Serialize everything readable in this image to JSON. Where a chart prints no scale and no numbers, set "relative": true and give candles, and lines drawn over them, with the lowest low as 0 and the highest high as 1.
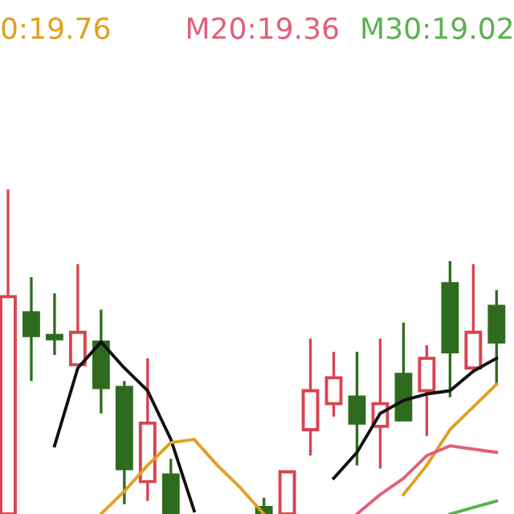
{
  "chart_data": {
    "type": "candlestick",
    "relative": true,
    "legend": "top",
    "categories": [
      null,
      null,
      null,
      null,
      null,
      null,
      null,
      null,
      null,
      null,
      null,
      null,
      null,
      null,
      null,
      null,
      null,
      null,
      null,
      null,
      null,
      null
    ],
    "ohlc": [
      [
        0,
        1.0,
        0,
        0.67
      ],
      [
        0.62,
        0.73,
        0.41,
        0.55
      ],
      [
        0.55,
        0.68,
        0.49,
        0.54
      ],
      [
        0.46,
        0.77,
        0.46,
        0.56
      ],
      [
        0.53,
        0.63,
        0.31,
        0.39
      ],
      [
        0.39,
        0.41,
        0.03,
        0.14
      ],
      [
        0.1,
        0.48,
        0.04,
        0.28
      ],
      [
        0.12,
        0.17,
        0,
        0
      ],
      null,
      null,
      null,
      [
        0.02,
        0.05,
        0,
        0
      ],
      [
        0,
        0.13,
        0,
        0.13
      ],
      [
        0.26,
        0.54,
        0.18,
        0.38
      ],
      [
        0.34,
        0.5,
        0.3,
        0.42
      ],
      [
        0.36,
        0.5,
        0.15,
        0.28
      ],
      [
        0.27,
        0.54,
        0.14,
        0.34
      ],
      [
        0.43,
        0.59,
        0.29,
        0.29
      ],
      [
        0.38,
        0.52,
        0.24,
        0.48
      ],
      [
        0.71,
        0.78,
        0.36,
        0.5
      ],
      [
        0.45,
        0.77,
        0.45,
        0.56
      ],
      [
        0.64,
        0.69,
        0.4,
        0.53
      ]
    ],
    "colors": [
      "#d9434f",
      "#2e6b1e",
      "#2e6b1e",
      "#d9434f",
      "#2e6b1e",
      "#2e6b1e",
      "#d9434f",
      "#2e6b1e",
      null,
      null,
      null,
      "#2e6b1e",
      "#d9434f",
      "#d9434f",
      "#d9434f",
      "#2e6b1e",
      "#d9434f",
      "#2e6b1e",
      "#d9434f",
      "#2e6b1e",
      "#d9434f",
      "#2e6b1e"
    ],
    "series": [
      {
        "type": "line",
        "color": "#111111",
        "values": [
          null,
          null,
          0.21,
          0.45,
          0.53,
          0.45,
          0.38,
          0.23,
          0.01,
          null,
          null,
          null,
          null,
          null,
          0.11,
          0.19,
          0.31,
          0.35,
          0.37,
          0.38,
          0.44,
          0.48
        ]
      },
      {
        "type": "line",
        "name": "0:19.76",
        "color": "#e0a020",
        "values": [
          null,
          null,
          null,
          null,
          0,
          0.07,
          0.15,
          0.22,
          0.23,
          0.15,
          0.08,
          0,
          null,
          null,
          null,
          null,
          null,
          0.06,
          0.15,
          0.26,
          0.33,
          0.4
        ]
      },
      {
        "type": "line",
        "name": "M20:19.36",
        "color": "#e0607a",
        "values": [
          null,
          null,
          null,
          null,
          null,
          null,
          null,
          null,
          null,
          null,
          null,
          null,
          null,
          null,
          null,
          0,
          0.06,
          0.11,
          0.18,
          0.21,
          0.2,
          0.19
        ]
      },
      {
        "type": "line",
        "name": "M30:19.02",
        "color": "#5cb050",
        "values": [
          null,
          null,
          null,
          null,
          null,
          null,
          null,
          null,
          null,
          null,
          null,
          null,
          null,
          null,
          null,
          null,
          null,
          null,
          null,
          0,
          0.02,
          0.04
        ]
      }
    ]
  }
}
